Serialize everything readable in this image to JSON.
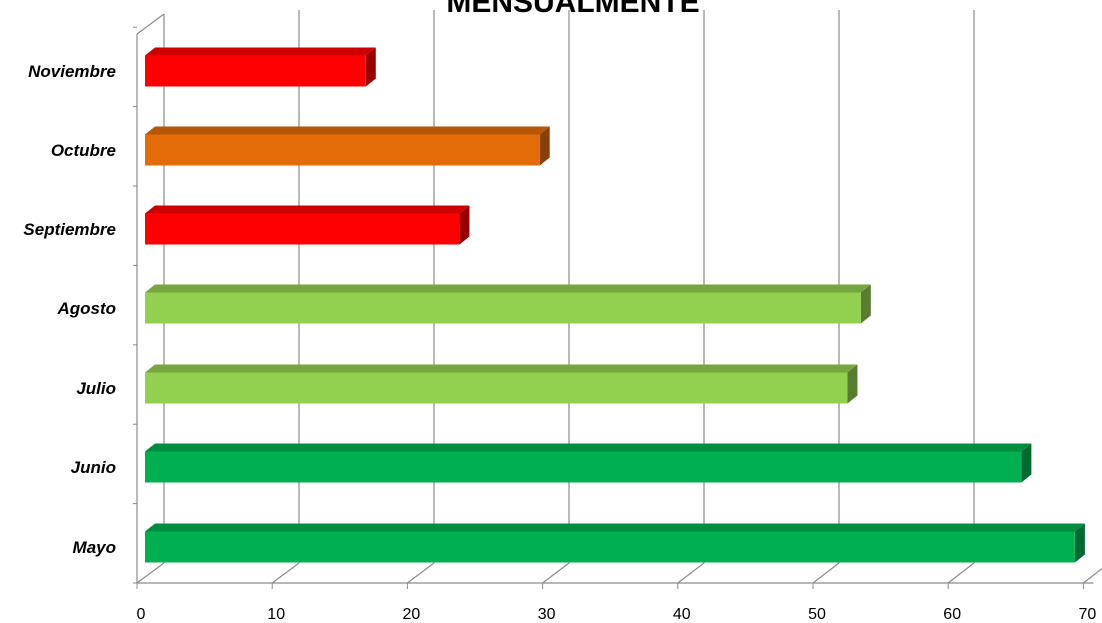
{
  "chart_data": {
    "type": "bar",
    "orientation": "horizontal",
    "title": "MENSUALMENTE",
    "categories": [
      "Mayo",
      "Junio",
      "Julio",
      "Agosto",
      "Septiembre",
      "Octubre",
      "Noviembre"
    ],
    "values": [
      69.5,
      65.5,
      52.5,
      53.5,
      23.5,
      29.5,
      16.5
    ],
    "colors": [
      "#00B050",
      "#00B050",
      "#92D050",
      "#92D050",
      "#FF0000",
      "#E36C09",
      "#FF0000"
    ],
    "xlabel": "",
    "ylabel": "",
    "xlim": [
      0,
      70
    ],
    "xticks": [
      "0",
      "10",
      "20",
      "30",
      "40",
      "50",
      "60",
      "70"
    ],
    "grid": true,
    "legend": "none"
  }
}
